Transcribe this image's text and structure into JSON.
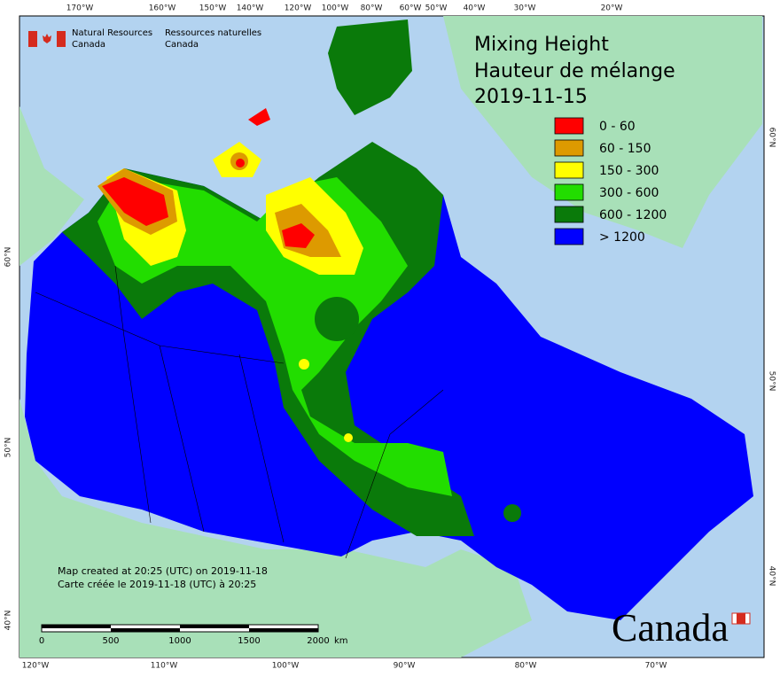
{
  "logo": {
    "en": [
      "Natural Resources",
      "Canada"
    ],
    "fr": [
      "Ressources naturelles",
      "Canada"
    ]
  },
  "title": [
    "Mixing Height",
    "Hauteur de mélange",
    "2019-11-15"
  ],
  "legend": [
    {
      "label": "0 - 60",
      "color": "#ff0000"
    },
    {
      "label": "60 - 150",
      "color": "#dd9a00"
    },
    {
      "label": "150 - 300",
      "color": "#ffff00"
    },
    {
      "label": "300 - 600",
      "color": "#22dd00"
    },
    {
      "label": "600 - 1200",
      "color": "#0a7a0a"
    },
    {
      "label": "> 1200",
      "color": "#0000ff"
    }
  ],
  "graticule": {
    "top": [
      "170°W",
      "160°W",
      "150°W",
      "140°W",
      "120°W",
      "100°W",
      "80°W",
      "60°W",
      "50°W",
      "40°W",
      "30°W",
      "20°W"
    ],
    "bottom": [
      "120°W",
      "110°W",
      "100°W",
      "90°W",
      "80°W",
      "70°W"
    ],
    "left": [
      "60°N",
      "50°N",
      "40°N"
    ],
    "right": [
      "60°N",
      "50°N",
      "40°N"
    ]
  },
  "notes": [
    "Map created at 20:25 (UTC) on 2019-11-18",
    "Carte créée le 2019-11-18 (UTC) à 20:25"
  ],
  "scale_bar": {
    "labels": [
      "0",
      "500",
      "1000",
      "1500",
      "2000"
    ],
    "unit": "km"
  },
  "wordmark": "Canada"
}
